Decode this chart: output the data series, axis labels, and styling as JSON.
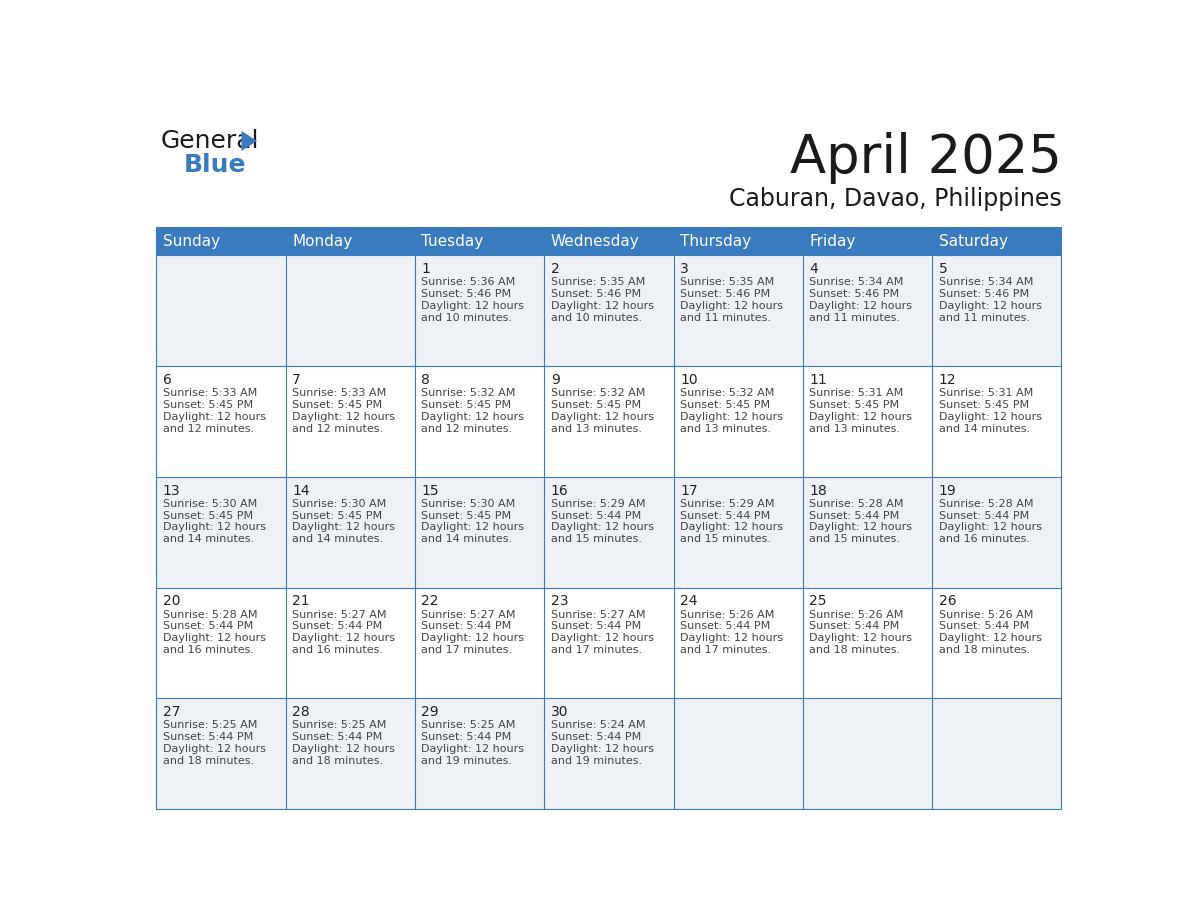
{
  "title": "April 2025",
  "subtitle": "Caburan, Davao, Philippines",
  "header_bg": "#3a7abf",
  "header_text": "#ffffff",
  "row_bg_odd": "#eef2f7",
  "row_bg_even": "#ffffff",
  "cell_border": "#3a7abf",
  "day_names": [
    "Sunday",
    "Monday",
    "Tuesday",
    "Wednesday",
    "Thursday",
    "Friday",
    "Saturday"
  ],
  "days": [
    {
      "date": 1,
      "col": 2,
      "row": 0,
      "sunrise": "5:36 AM",
      "sunset": "5:46 PM",
      "daylight": "12 hours and 10 minutes."
    },
    {
      "date": 2,
      "col": 3,
      "row": 0,
      "sunrise": "5:35 AM",
      "sunset": "5:46 PM",
      "daylight": "12 hours and 10 minutes."
    },
    {
      "date": 3,
      "col": 4,
      "row": 0,
      "sunrise": "5:35 AM",
      "sunset": "5:46 PM",
      "daylight": "12 hours and 11 minutes."
    },
    {
      "date": 4,
      "col": 5,
      "row": 0,
      "sunrise": "5:34 AM",
      "sunset": "5:46 PM",
      "daylight": "12 hours and 11 minutes."
    },
    {
      "date": 5,
      "col": 6,
      "row": 0,
      "sunrise": "5:34 AM",
      "sunset": "5:46 PM",
      "daylight": "12 hours and 11 minutes."
    },
    {
      "date": 6,
      "col": 0,
      "row": 1,
      "sunrise": "5:33 AM",
      "sunset": "5:45 PM",
      "daylight": "12 hours and 12 minutes."
    },
    {
      "date": 7,
      "col": 1,
      "row": 1,
      "sunrise": "5:33 AM",
      "sunset": "5:45 PM",
      "daylight": "12 hours and 12 minutes."
    },
    {
      "date": 8,
      "col": 2,
      "row": 1,
      "sunrise": "5:32 AM",
      "sunset": "5:45 PM",
      "daylight": "12 hours and 12 minutes."
    },
    {
      "date": 9,
      "col": 3,
      "row": 1,
      "sunrise": "5:32 AM",
      "sunset": "5:45 PM",
      "daylight": "12 hours and 13 minutes."
    },
    {
      "date": 10,
      "col": 4,
      "row": 1,
      "sunrise": "5:32 AM",
      "sunset": "5:45 PM",
      "daylight": "12 hours and 13 minutes."
    },
    {
      "date": 11,
      "col": 5,
      "row": 1,
      "sunrise": "5:31 AM",
      "sunset": "5:45 PM",
      "daylight": "12 hours and 13 minutes."
    },
    {
      "date": 12,
      "col": 6,
      "row": 1,
      "sunrise": "5:31 AM",
      "sunset": "5:45 PM",
      "daylight": "12 hours and 14 minutes."
    },
    {
      "date": 13,
      "col": 0,
      "row": 2,
      "sunrise": "5:30 AM",
      "sunset": "5:45 PM",
      "daylight": "12 hours and 14 minutes."
    },
    {
      "date": 14,
      "col": 1,
      "row": 2,
      "sunrise": "5:30 AM",
      "sunset": "5:45 PM",
      "daylight": "12 hours and 14 minutes."
    },
    {
      "date": 15,
      "col": 2,
      "row": 2,
      "sunrise": "5:30 AM",
      "sunset": "5:45 PM",
      "daylight": "12 hours and 14 minutes."
    },
    {
      "date": 16,
      "col": 3,
      "row": 2,
      "sunrise": "5:29 AM",
      "sunset": "5:44 PM",
      "daylight": "12 hours and 15 minutes."
    },
    {
      "date": 17,
      "col": 4,
      "row": 2,
      "sunrise": "5:29 AM",
      "sunset": "5:44 PM",
      "daylight": "12 hours and 15 minutes."
    },
    {
      "date": 18,
      "col": 5,
      "row": 2,
      "sunrise": "5:28 AM",
      "sunset": "5:44 PM",
      "daylight": "12 hours and 15 minutes."
    },
    {
      "date": 19,
      "col": 6,
      "row": 2,
      "sunrise": "5:28 AM",
      "sunset": "5:44 PM",
      "daylight": "12 hours and 16 minutes."
    },
    {
      "date": 20,
      "col": 0,
      "row": 3,
      "sunrise": "5:28 AM",
      "sunset": "5:44 PM",
      "daylight": "12 hours and 16 minutes."
    },
    {
      "date": 21,
      "col": 1,
      "row": 3,
      "sunrise": "5:27 AM",
      "sunset": "5:44 PM",
      "daylight": "12 hours and 16 minutes."
    },
    {
      "date": 22,
      "col": 2,
      "row": 3,
      "sunrise": "5:27 AM",
      "sunset": "5:44 PM",
      "daylight": "12 hours and 17 minutes."
    },
    {
      "date": 23,
      "col": 3,
      "row": 3,
      "sunrise": "5:27 AM",
      "sunset": "5:44 PM",
      "daylight": "12 hours and 17 minutes."
    },
    {
      "date": 24,
      "col": 4,
      "row": 3,
      "sunrise": "5:26 AM",
      "sunset": "5:44 PM",
      "daylight": "12 hours and 17 minutes."
    },
    {
      "date": 25,
      "col": 5,
      "row": 3,
      "sunrise": "5:26 AM",
      "sunset": "5:44 PM",
      "daylight": "12 hours and 18 minutes."
    },
    {
      "date": 26,
      "col": 6,
      "row": 3,
      "sunrise": "5:26 AM",
      "sunset": "5:44 PM",
      "daylight": "12 hours and 18 minutes."
    },
    {
      "date": 27,
      "col": 0,
      "row": 4,
      "sunrise": "5:25 AM",
      "sunset": "5:44 PM",
      "daylight": "12 hours and 18 minutes."
    },
    {
      "date": 28,
      "col": 1,
      "row": 4,
      "sunrise": "5:25 AM",
      "sunset": "5:44 PM",
      "daylight": "12 hours and 18 minutes."
    },
    {
      "date": 29,
      "col": 2,
      "row": 4,
      "sunrise": "5:25 AM",
      "sunset": "5:44 PM",
      "daylight": "12 hours and 19 minutes."
    },
    {
      "date": 30,
      "col": 3,
      "row": 4,
      "sunrise": "5:24 AM",
      "sunset": "5:44 PM",
      "daylight": "12 hours and 19 minutes."
    }
  ],
  "num_rows": 5,
  "num_cols": 7,
  "logo_text_general": "General",
  "logo_text_blue": "Blue",
  "logo_color_general": "#1a1a1a",
  "logo_color_blue": "#3a7abf",
  "logo_triangle_color": "#3a7abf",
  "title_fontsize": 38,
  "subtitle_fontsize": 17,
  "day_header_fontsize": 11,
  "date_num_fontsize": 10,
  "cell_text_fontsize": 8,
  "logo_general_fontsize": 18,
  "logo_blue_fontsize": 18
}
